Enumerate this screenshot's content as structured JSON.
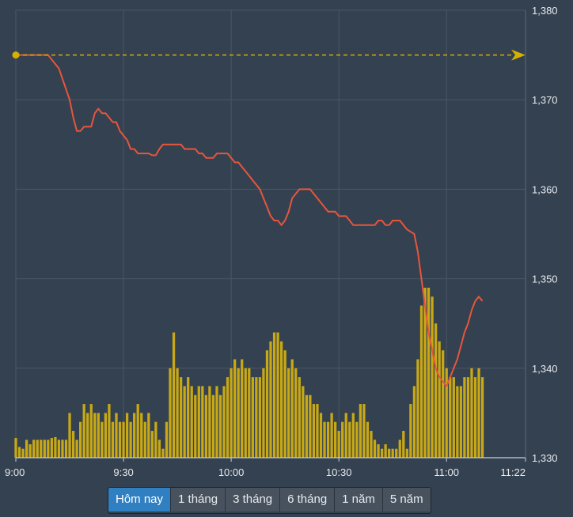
{
  "chart_data": {
    "type": "line",
    "x_ticks": [
      "9:00",
      "9:30",
      "10:00",
      "10:30",
      "11:00",
      "11:22"
    ],
    "y_ticks": [
      "1,380",
      "1,370",
      "1,360",
      "1,350",
      "1,340",
      "1,330"
    ],
    "ylim": [
      1330,
      1380
    ],
    "xlim_minutes_from_9": [
      0,
      142
    ],
    "reference_price": 1375,
    "grid": true,
    "series": [
      {
        "type": "line",
        "color": "#e8553c",
        "points": [
          [
            0,
            1375
          ],
          [
            9,
            1375
          ],
          [
            12,
            1373.5
          ],
          [
            15,
            1370
          ],
          [
            16,
            1368
          ],
          [
            17,
            1366.5
          ],
          [
            18,
            1366.5
          ],
          [
            19,
            1367
          ],
          [
            20,
            1367
          ],
          [
            21,
            1367
          ],
          [
            22,
            1368.5
          ],
          [
            23,
            1369
          ],
          [
            24,
            1368.5
          ],
          [
            25,
            1368.5
          ],
          [
            26,
            1368
          ],
          [
            27,
            1367.5
          ],
          [
            28,
            1367.5
          ],
          [
            29,
            1366.5
          ],
          [
            30,
            1366
          ],
          [
            31,
            1365.5
          ],
          [
            32,
            1364.5
          ],
          [
            33,
            1364.5
          ],
          [
            34,
            1364
          ],
          [
            35,
            1364
          ],
          [
            36,
            1364
          ],
          [
            37,
            1364
          ],
          [
            38,
            1363.8
          ],
          [
            39,
            1363.8
          ],
          [
            40,
            1364.5
          ],
          [
            41,
            1365
          ],
          [
            42,
            1365
          ],
          [
            43,
            1365
          ],
          [
            44,
            1365
          ],
          [
            45,
            1365
          ],
          [
            46,
            1365
          ],
          [
            47,
            1364.5
          ],
          [
            48,
            1364.5
          ],
          [
            49,
            1364.5
          ],
          [
            50,
            1364.5
          ],
          [
            51,
            1364
          ],
          [
            52,
            1364
          ],
          [
            53,
            1363.5
          ],
          [
            54,
            1363.5
          ],
          [
            55,
            1363.5
          ],
          [
            56,
            1364
          ],
          [
            57,
            1364
          ],
          [
            58,
            1364
          ],
          [
            59,
            1364
          ],
          [
            60,
            1363.5
          ],
          [
            61,
            1363
          ],
          [
            62,
            1363
          ],
          [
            63,
            1362.5
          ],
          [
            64,
            1362
          ],
          [
            65,
            1361.5
          ],
          [
            66,
            1361
          ],
          [
            67,
            1360.5
          ],
          [
            68,
            1360
          ],
          [
            69,
            1359
          ],
          [
            70,
            1358
          ],
          [
            71,
            1357
          ],
          [
            72,
            1356.5
          ],
          [
            73,
            1356.5
          ],
          [
            74,
            1356
          ],
          [
            75,
            1356.5
          ],
          [
            76,
            1357.5
          ],
          [
            77,
            1359
          ],
          [
            78,
            1359.5
          ],
          [
            79,
            1360
          ],
          [
            80,
            1360
          ],
          [
            81,
            1360
          ],
          [
            82,
            1360
          ],
          [
            83,
            1359.5
          ],
          [
            84,
            1359
          ],
          [
            85,
            1358.5
          ],
          [
            86,
            1358
          ],
          [
            87,
            1357.5
          ],
          [
            88,
            1357.5
          ],
          [
            89,
            1357.5
          ],
          [
            90,
            1357
          ],
          [
            91,
            1357
          ],
          [
            92,
            1357
          ],
          [
            93,
            1356.5
          ],
          [
            94,
            1356
          ],
          [
            95,
            1356
          ],
          [
            96,
            1356
          ],
          [
            97,
            1356
          ],
          [
            98,
            1356
          ],
          [
            99,
            1356
          ],
          [
            100,
            1356
          ],
          [
            101,
            1356.5
          ],
          [
            102,
            1356.5
          ],
          [
            103,
            1356
          ],
          [
            104,
            1356
          ],
          [
            105,
            1356.5
          ],
          [
            106,
            1356.5
          ],
          [
            107,
            1356.5
          ],
          [
            108,
            1356
          ],
          [
            109,
            1355.5
          ],
          [
            111,
            1355
          ],
          [
            112,
            1353
          ],
          [
            113,
            1350
          ],
          [
            114,
            1347
          ],
          [
            115,
            1344
          ],
          [
            116,
            1342
          ],
          [
            117,
            1340
          ],
          [
            118,
            1339
          ],
          [
            119,
            1338.5
          ],
          [
            120,
            1338
          ],
          [
            121,
            1339
          ],
          [
            122,
            1340
          ],
          [
            123,
            1341
          ],
          [
            124,
            1342.5
          ],
          [
            125,
            1344
          ],
          [
            126,
            1345
          ],
          [
            127,
            1346.5
          ],
          [
            128,
            1347.5
          ],
          [
            129,
            1348
          ],
          [
            130,
            1347.5
          ]
        ]
      },
      {
        "type": "bar",
        "color": "#c8a915",
        "values": [
          [
            0,
            1332.2
          ],
          [
            1,
            1331.2
          ],
          [
            2,
            1331
          ],
          [
            3,
            1332
          ],
          [
            4,
            1331.5
          ],
          [
            5,
            1332
          ],
          [
            6,
            1332
          ],
          [
            7,
            1332
          ],
          [
            8,
            1332
          ],
          [
            9,
            1332
          ],
          [
            10,
            1332.2
          ],
          [
            11,
            1332.3
          ],
          [
            12,
            1332
          ],
          [
            13,
            1332
          ],
          [
            14,
            1332
          ],
          [
            15,
            1335
          ],
          [
            16,
            1333
          ],
          [
            17,
            1332
          ],
          [
            18,
            1334
          ],
          [
            19,
            1336
          ],
          [
            20,
            1335
          ],
          [
            21,
            1336
          ],
          [
            22,
            1335
          ],
          [
            23,
            1335
          ],
          [
            24,
            1334
          ],
          [
            25,
            1335
          ],
          [
            26,
            1336
          ],
          [
            27,
            1334
          ],
          [
            28,
            1335
          ],
          [
            29,
            1334
          ],
          [
            30,
            1334
          ],
          [
            31,
            1335
          ],
          [
            32,
            1334
          ],
          [
            33,
            1335
          ],
          [
            34,
            1336
          ],
          [
            35,
            1335
          ],
          [
            36,
            1334
          ],
          [
            37,
            1335
          ],
          [
            38,
            1333
          ],
          [
            39,
            1334
          ],
          [
            40,
            1332
          ],
          [
            41,
            1331
          ],
          [
            42,
            1334
          ],
          [
            43,
            1340
          ],
          [
            44,
            1344
          ],
          [
            45,
            1340
          ],
          [
            46,
            1339
          ],
          [
            47,
            1338
          ],
          [
            48,
            1339
          ],
          [
            49,
            1338
          ],
          [
            50,
            1337
          ],
          [
            51,
            1338
          ],
          [
            52,
            1338
          ],
          [
            53,
            1337
          ],
          [
            54,
            1338
          ],
          [
            55,
            1337
          ],
          [
            56,
            1338
          ],
          [
            57,
            1337
          ],
          [
            58,
            1338
          ],
          [
            59,
            1339
          ],
          [
            60,
            1340
          ],
          [
            61,
            1341
          ],
          [
            62,
            1340
          ],
          [
            63,
            1341
          ],
          [
            64,
            1340
          ],
          [
            65,
            1340
          ],
          [
            66,
            1339
          ],
          [
            67,
            1339
          ],
          [
            68,
            1339
          ],
          [
            69,
            1340
          ],
          [
            70,
            1342
          ],
          [
            71,
            1343
          ],
          [
            72,
            1344
          ],
          [
            73,
            1344
          ],
          [
            74,
            1343
          ],
          [
            75,
            1342
          ],
          [
            76,
            1340
          ],
          [
            77,
            1341
          ],
          [
            78,
            1340
          ],
          [
            79,
            1339
          ],
          [
            80,
            1338
          ],
          [
            81,
            1337
          ],
          [
            82,
            1337
          ],
          [
            83,
            1336
          ],
          [
            84,
            1336
          ],
          [
            85,
            1335
          ],
          [
            86,
            1334
          ],
          [
            87,
            1334
          ],
          [
            88,
            1335
          ],
          [
            89,
            1334
          ],
          [
            90,
            1333
          ],
          [
            91,
            1334
          ],
          [
            92,
            1335
          ],
          [
            93,
            1334
          ],
          [
            94,
            1335
          ],
          [
            95,
            1334
          ],
          [
            96,
            1336
          ],
          [
            97,
            1336
          ],
          [
            98,
            1334
          ],
          [
            99,
            1333
          ],
          [
            100,
            1332
          ],
          [
            101,
            1331.5
          ],
          [
            102,
            1331
          ],
          [
            103,
            1331.5
          ],
          [
            104,
            1331
          ],
          [
            105,
            1331
          ],
          [
            106,
            1331
          ],
          [
            107,
            1332
          ],
          [
            108,
            1333
          ],
          [
            109,
            1331
          ],
          [
            110,
            1336
          ],
          [
            111,
            1338
          ],
          [
            112,
            1341
          ],
          [
            113,
            1347
          ],
          [
            114,
            1349
          ],
          [
            115,
            1349
          ],
          [
            116,
            1348
          ],
          [
            117,
            1345
          ],
          [
            118,
            1343
          ],
          [
            119,
            1342
          ],
          [
            120,
            1340
          ],
          [
            121,
            1339
          ],
          [
            122,
            1339
          ],
          [
            123,
            1338
          ],
          [
            124,
            1338
          ],
          [
            125,
            1339
          ],
          [
            126,
            1339
          ],
          [
            127,
            1340
          ],
          [
            128,
            1339
          ],
          [
            129,
            1340
          ],
          [
            130,
            1339
          ]
        ]
      }
    ]
  },
  "range_tabs": {
    "selected": "Hôm nay",
    "items": [
      "Hôm nay",
      "1 tháng",
      "3 tháng",
      "6 tháng",
      "1 năm",
      "5 năm"
    ]
  },
  "colors": {
    "background": "#344150",
    "price_line": "#e8553c",
    "volume_bar": "#c8a915",
    "reference_line": "#d4b000",
    "active_tab": "#2f7fc1"
  }
}
